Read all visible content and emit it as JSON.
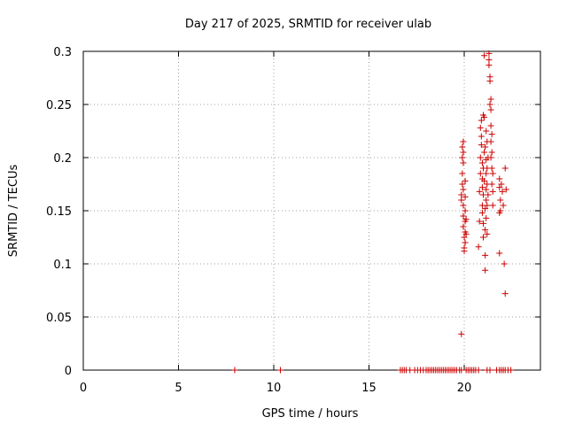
{
  "chart_data": {
    "type": "scatter",
    "title": "Day 217 of 2025, SRMTID for receiver ulab",
    "xlabel": "GPS time / hours",
    "ylabel": "SRMTID / TECUs",
    "xlim": [
      0,
      24
    ],
    "ylim": [
      0,
      0.3
    ],
    "xticks": [
      0,
      5,
      10,
      15,
      20
    ],
    "xtick_labels": [
      "0",
      "5",
      "10",
      "15",
      "20"
    ],
    "yticks": [
      0,
      0.05,
      0.1,
      0.15,
      0.2,
      0.25,
      0.3
    ],
    "ytick_labels": [
      "0",
      "0.05",
      "0.1",
      "0.15",
      "0.2",
      "0.25",
      "0.3"
    ],
    "grid": true,
    "marker": "+",
    "series": [
      {
        "name": "SRMTID",
        "color": "#cc0000",
        "points": [
          [
            7.95,
            0
          ],
          [
            10.35,
            0
          ],
          [
            16.65,
            0
          ],
          [
            16.75,
            0
          ],
          [
            16.85,
            0
          ],
          [
            16.95,
            0
          ],
          [
            17.15,
            0
          ],
          [
            17.4,
            0
          ],
          [
            17.55,
            0
          ],
          [
            17.7,
            0
          ],
          [
            17.85,
            0
          ],
          [
            18.0,
            0
          ],
          [
            18.1,
            0
          ],
          [
            18.2,
            0
          ],
          [
            18.3,
            0
          ],
          [
            18.4,
            0
          ],
          [
            18.5,
            0
          ],
          [
            18.6,
            0
          ],
          [
            18.7,
            0
          ],
          [
            18.8,
            0
          ],
          [
            18.9,
            0
          ],
          [
            19.0,
            0
          ],
          [
            19.1,
            0
          ],
          [
            19.2,
            0
          ],
          [
            19.3,
            0
          ],
          [
            19.4,
            0
          ],
          [
            19.5,
            0
          ],
          [
            19.6,
            0
          ],
          [
            19.75,
            0
          ],
          [
            19.85,
            0
          ],
          [
            20.1,
            0
          ],
          [
            20.2,
            0
          ],
          [
            20.3,
            0
          ],
          [
            20.4,
            0
          ],
          [
            20.5,
            0
          ],
          [
            20.6,
            0
          ],
          [
            20.75,
            0
          ],
          [
            21.2,
            0
          ],
          [
            21.35,
            0
          ],
          [
            21.7,
            0
          ],
          [
            21.85,
            0
          ],
          [
            21.95,
            0
          ],
          [
            22.05,
            0
          ],
          [
            22.15,
            0
          ],
          [
            22.3,
            0
          ],
          [
            22.45,
            0
          ],
          [
            19.85,
            0.034
          ],
          [
            19.85,
            0.16
          ],
          [
            19.85,
            0.165
          ],
          [
            19.9,
            0.175
          ],
          [
            19.9,
            0.185
          ],
          [
            19.9,
            0.2
          ],
          [
            19.9,
            0.21
          ],
          [
            19.95,
            0.215
          ],
          [
            19.95,
            0.205
          ],
          [
            19.95,
            0.195
          ],
          [
            19.95,
            0.17
          ],
          [
            19.95,
            0.155
          ],
          [
            19.95,
            0.145
          ],
          [
            19.95,
            0.135
          ],
          [
            20.0,
            0.125
          ],
          [
            20.0,
            0.115
          ],
          [
            20.0,
            0.112
          ],
          [
            20.05,
            0.12
          ],
          [
            20.05,
            0.13
          ],
          [
            20.05,
            0.14
          ],
          [
            20.05,
            0.15
          ],
          [
            20.05,
            0.163
          ],
          [
            20.05,
            0.178
          ],
          [
            20.1,
            0.142
          ],
          [
            20.1,
            0.128
          ],
          [
            20.75,
            0.116
          ],
          [
            20.8,
            0.14
          ],
          [
            20.8,
            0.168
          ],
          [
            20.85,
            0.185
          ],
          [
            20.85,
            0.2
          ],
          [
            20.85,
            0.228
          ],
          [
            20.9,
            0.235
          ],
          [
            20.9,
            0.22
          ],
          [
            20.9,
            0.212
          ],
          [
            20.95,
            0.195
          ],
          [
            20.95,
            0.18
          ],
          [
            20.95,
            0.172
          ],
          [
            20.95,
            0.155
          ],
          [
            20.95,
            0.148
          ],
          [
            21.0,
            0.138
          ],
          [
            21.0,
            0.125
          ],
          [
            21.0,
            0.165
          ],
          [
            21.0,
            0.19
          ],
          [
            21.0,
            0.24
          ],
          [
            21.05,
            0.296
          ],
          [
            21.05,
            0.238
          ],
          [
            21.05,
            0.205
          ],
          [
            21.05,
            0.178
          ],
          [
            21.1,
            0.152
          ],
          [
            21.1,
            0.132
          ],
          [
            21.1,
            0.108
          ],
          [
            21.1,
            0.094
          ],
          [
            21.1,
            0.21
          ],
          [
            21.15,
            0.225
          ],
          [
            21.15,
            0.198
          ],
          [
            21.15,
            0.185
          ],
          [
            21.15,
            0.17
          ],
          [
            21.15,
            0.16
          ],
          [
            21.15,
            0.143
          ],
          [
            21.2,
            0.128
          ],
          [
            21.2,
            0.155
          ],
          [
            21.2,
            0.175
          ],
          [
            21.2,
            0.19
          ],
          [
            21.2,
            0.215
          ],
          [
            21.25,
            0.2
          ],
          [
            21.25,
            0.165
          ],
          [
            21.3,
            0.298
          ],
          [
            21.3,
            0.292
          ],
          [
            21.3,
            0.287
          ],
          [
            21.35,
            0.276
          ],
          [
            21.35,
            0.272
          ],
          [
            21.35,
            0.25
          ],
          [
            21.4,
            0.255
          ],
          [
            21.4,
            0.245
          ],
          [
            21.4,
            0.23
          ],
          [
            21.4,
            0.215
          ],
          [
            21.4,
            0.2
          ],
          [
            21.45,
            0.222
          ],
          [
            21.45,
            0.205
          ],
          [
            21.45,
            0.19
          ],
          [
            21.45,
            0.175
          ],
          [
            21.5,
            0.185
          ],
          [
            21.5,
            0.168
          ],
          [
            21.5,
            0.155
          ],
          [
            21.85,
            0.18
          ],
          [
            21.85,
            0.172
          ],
          [
            21.85,
            0.148
          ],
          [
            21.85,
            0.11
          ],
          [
            21.9,
            0.16
          ],
          [
            21.9,
            0.15
          ],
          [
            21.95,
            0.175
          ],
          [
            22.0,
            0.168
          ],
          [
            22.05,
            0.155
          ],
          [
            22.1,
            0.1
          ],
          [
            22.15,
            0.072
          ],
          [
            22.15,
            0.19
          ],
          [
            22.2,
            0.17
          ]
        ]
      }
    ]
  }
}
